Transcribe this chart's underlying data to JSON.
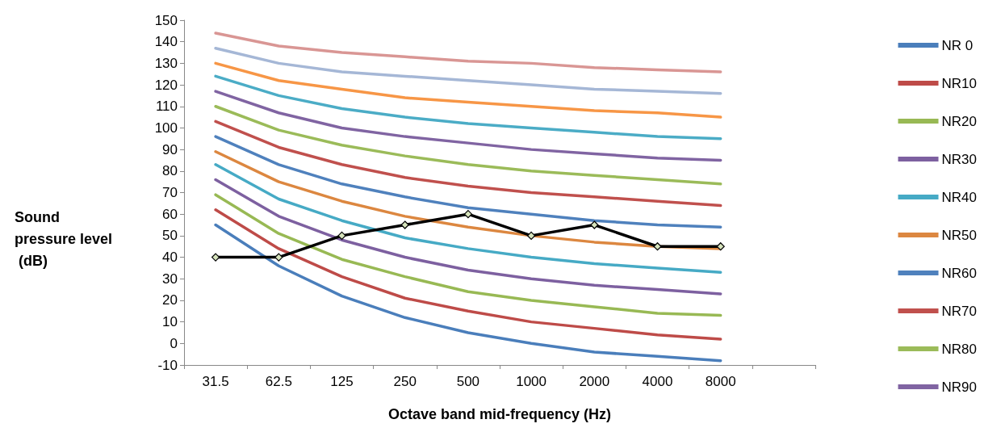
{
  "chart_data": {
    "type": "line",
    "xlabel": "Octave band mid-frequency (Hz)",
    "ylabel": "Sound pressure level (dB)",
    "categories": [
      "31.5",
      "62.5",
      "125",
      "250",
      "500",
      "1000",
      "2000",
      "4000",
      "8000",
      null
    ],
    "ylim": [
      -10,
      150
    ],
    "yticks": [
      -10,
      0,
      10,
      20,
      30,
      40,
      50,
      60,
      70,
      80,
      90,
      100,
      110,
      120,
      130,
      140,
      150
    ],
    "grid": false,
    "legend": "right",
    "marker": "none",
    "line_style": "solid",
    "series": [
      {
        "name": "NR 0",
        "color": "#4a7ebb",
        "values": [
          55,
          36,
          22,
          12,
          5,
          0,
          -4,
          -6,
          -8,
          null
        ]
      },
      {
        "name": "NR10",
        "color": "#be4b48",
        "values": [
          62,
          44,
          31,
          21,
          15,
          10,
          7,
          4,
          2,
          null
        ]
      },
      {
        "name": "NR20",
        "color": "#98b954",
        "values": [
          69,
          51,
          39,
          31,
          24,
          20,
          17,
          14,
          13,
          null
        ]
      },
      {
        "name": "NR30",
        "color": "#7d60a0",
        "values": [
          76,
          59,
          48,
          40,
          34,
          30,
          27,
          25,
          23,
          null
        ]
      },
      {
        "name": "NR40",
        "color": "#46aac5",
        "values": [
          83,
          67,
          57,
          49,
          44,
          40,
          37,
          35,
          33,
          null
        ]
      },
      {
        "name": "NR50",
        "color": "#dc8740",
        "values": [
          89,
          75,
          66,
          59,
          54,
          50,
          47,
          45,
          44,
          null
        ]
      },
      {
        "name": "NR60",
        "color": "#4f81bd",
        "values": [
          96,
          83,
          74,
          68,
          63,
          60,
          57,
          55,
          54,
          null
        ]
      },
      {
        "name": "NR70",
        "color": "#c0504d",
        "values": [
          103,
          91,
          83,
          77,
          73,
          70,
          68,
          66,
          64,
          null
        ]
      },
      {
        "name": "NR80",
        "color": "#9bbb59",
        "values": [
          110,
          99,
          92,
          87,
          83,
          80,
          78,
          76,
          74,
          null
        ]
      },
      {
        "name": "NR90",
        "color": "#8064a2",
        "values": [
          117,
          107,
          100,
          96,
          93,
          90,
          88,
          86,
          85,
          null
        ]
      },
      {
        "color": "#4bacc6",
        "values": [
          124,
          115,
          109,
          105,
          102,
          100,
          98,
          96,
          95,
          null
        ]
      },
      {
        "color": "#f79646",
        "values": [
          130,
          122,
          118,
          114,
          112,
          110,
          108,
          107,
          105,
          null
        ]
      },
      {
        "color": "#a5b7d6",
        "values": [
          137,
          130,
          126,
          124,
          122,
          120,
          118,
          117,
          116,
          null
        ]
      },
      {
        "color": "#d99694",
        "values": [
          144,
          138,
          135,
          133,
          131,
          130,
          128,
          127,
          126,
          null
        ]
      },
      {
        "color": "#000000",
        "marker": "diamond",
        "values": [
          40,
          40,
          50,
          55,
          60,
          50,
          55,
          45,
          45,
          null
        ]
      }
    ]
  }
}
